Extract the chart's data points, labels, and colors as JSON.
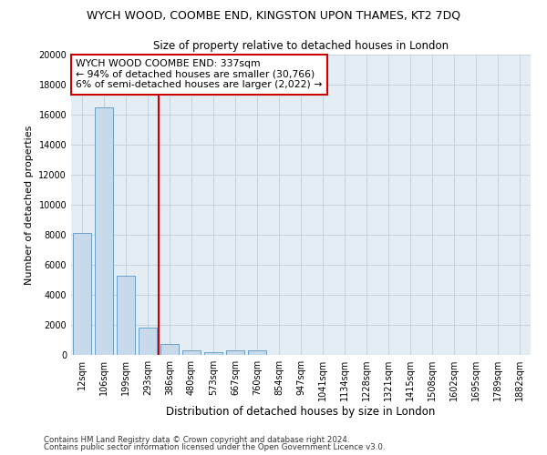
{
  "title": "WYCH WOOD, COOMBE END, KINGSTON UPON THAMES, KT2 7DQ",
  "subtitle": "Size of property relative to detached houses in London",
  "xlabel": "Distribution of detached houses by size in London",
  "ylabel": "Number of detached properties",
  "footer_line1": "Contains HM Land Registry data © Crown copyright and database right 2024.",
  "footer_line2": "Contains public sector information licensed under the Open Government Licence v3.0.",
  "annotation_title": "WYCH WOOD COOMBE END: 337sqm",
  "annotation_line1": "← 94% of detached houses are smaller (30,766)",
  "annotation_line2": "6% of semi-detached houses are larger (2,022) →",
  "bar_color": "#c8d9ea",
  "bar_edge_color": "#6ca0c8",
  "vline_color": "#cc0000",
  "annotation_box_color": "#ffffff",
  "annotation_box_edge": "#cc0000",
  "categories": [
    "12sqm",
    "106sqm",
    "199sqm",
    "293sqm",
    "386sqm",
    "480sqm",
    "573sqm",
    "667sqm",
    "760sqm",
    "854sqm",
    "947sqm",
    "1041sqm",
    "1134sqm",
    "1228sqm",
    "1321sqm",
    "1415sqm",
    "1508sqm",
    "1602sqm",
    "1695sqm",
    "1789sqm",
    "1882sqm"
  ],
  "values": [
    8100,
    16500,
    5300,
    1800,
    750,
    300,
    200,
    300,
    300,
    0,
    0,
    0,
    0,
    0,
    0,
    0,
    0,
    0,
    0,
    0,
    0
  ],
  "ylim": [
    0,
    20000
  ],
  "yticks": [
    0,
    2000,
    4000,
    6000,
    8000,
    10000,
    12000,
    14000,
    16000,
    18000,
    20000
  ],
  "vline_x_index": 3.5,
  "background_color": "#ffffff",
  "grid_color": "#c8d4e0",
  "axes_bg_color": "#e4ecf4"
}
